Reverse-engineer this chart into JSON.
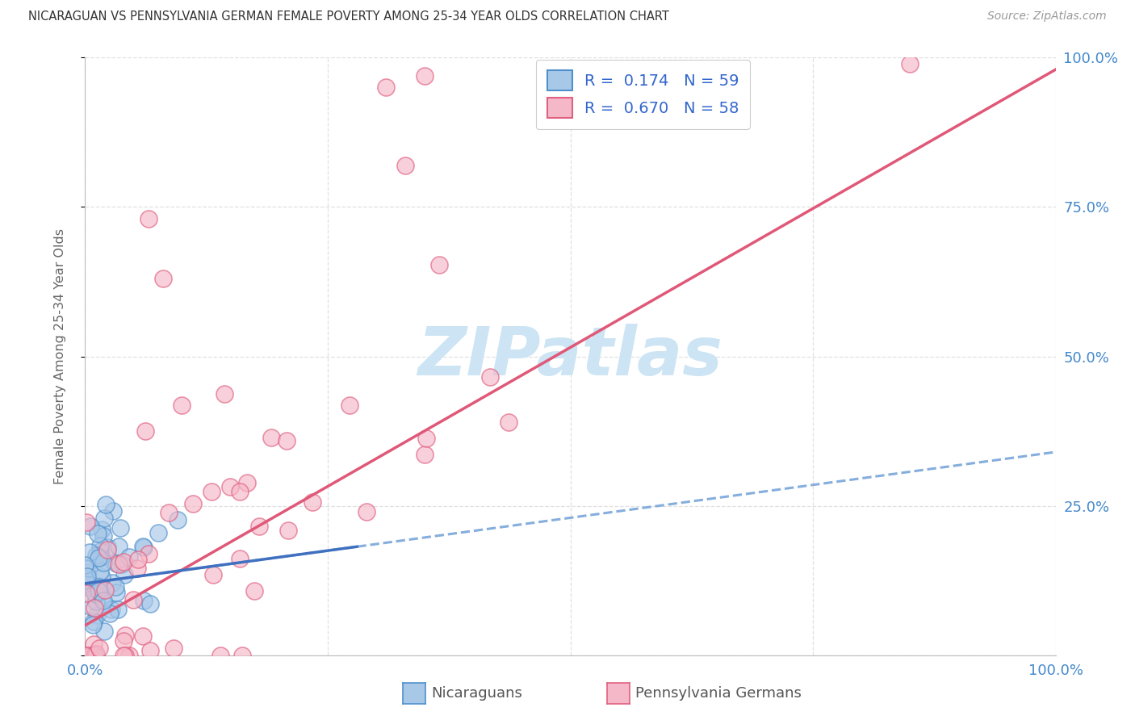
{
  "title": "NICARAGUAN VS PENNSYLVANIA GERMAN FEMALE POVERTY AMONG 25-34 YEAR OLDS CORRELATION CHART",
  "source": "Source: ZipAtlas.com",
  "ylabel": "Female Poverty Among 25-34 Year Olds",
  "R1": 0.174,
  "N1": 59,
  "R2": 0.67,
  "N2": 58,
  "color_blue_fill": "#a8c8e8",
  "color_blue_edge": "#5090cc",
  "color_pink_fill": "#f5b8c8",
  "color_pink_edge": "#e06080",
  "color_blue_line_solid": "#4070c0",
  "color_blue_line_dash": "#70a0d8",
  "color_pink_line": "#e05878",
  "color_axis_text": "#4488cc",
  "color_title": "#333333",
  "color_source": "#999999",
  "color_ylabel": "#666666",
  "color_grid": "#e0e0e0",
  "color_watermark": "#cce4f4",
  "background": "#ffffff",
  "legend_blue_num_color": "#3366cc",
  "legend_pink_num_color": "#3366cc",
  "xlim": [
    0,
    100
  ],
  "ylim": [
    0,
    100
  ],
  "yticks": [
    0,
    25,
    50,
    75,
    100
  ],
  "yticklabels_right": [
    "",
    "25.0%",
    "50.0%",
    "75.0%",
    "100.0%"
  ],
  "legend_label1": "Nicaraguans",
  "legend_label2": "Pennsylvania Germans",
  "blue_x_seed": 7,
  "pink_x_seed": 13
}
